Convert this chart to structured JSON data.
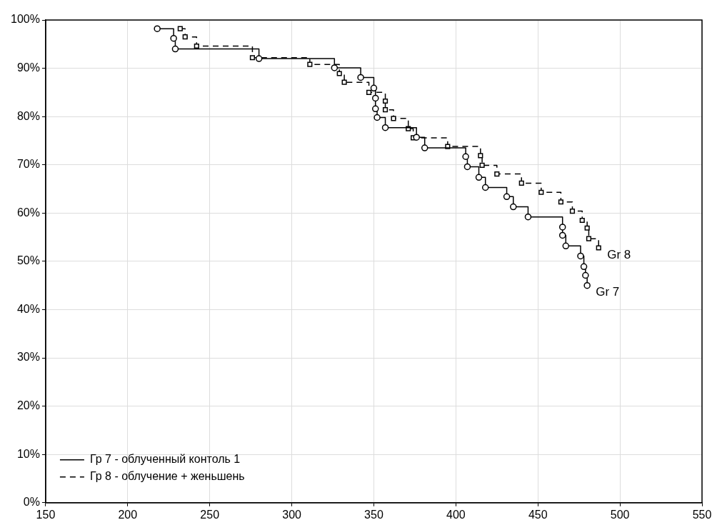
{
  "chart_data": {
    "type": "step",
    "xlim": [
      150,
      550
    ],
    "xticks": [
      150,
      200,
      250,
      300,
      350,
      400,
      450,
      500,
      550
    ],
    "ylim": [
      0,
      100
    ],
    "yticks": [
      {
        "value": 0,
        "label": "0%"
      },
      {
        "value": 10,
        "label": "10%"
      },
      {
        "value": 20,
        "label": "20%"
      },
      {
        "value": 30,
        "label": "30%"
      },
      {
        "value": 40,
        "label": "40%"
      },
      {
        "value": 50,
        "label": "50%"
      },
      {
        "value": 60,
        "label": "60%"
      },
      {
        "value": 70,
        "label": "70%"
      },
      {
        "value": 80,
        "label": "80%"
      },
      {
        "value": 90,
        "label": "90%"
      },
      {
        "value": 100,
        "label": "100%"
      }
    ],
    "grid": true,
    "legend": "bottom left",
    "series": [
      {
        "name": "Гр 7 - облученный контоль 1",
        "color": "#000000",
        "marker": "circle",
        "line_style": "solid",
        "x": [
          218,
          228,
          229,
          280,
          326,
          342,
          350,
          351,
          351,
          352,
          357,
          376,
          381,
          406,
          407,
          414,
          418,
          431,
          435,
          444,
          465,
          465,
          467,
          476,
          478,
          479,
          480
        ],
        "values": [
          98.2,
          96.2,
          94.0,
          92.0,
          90.1,
          88.1,
          85.9,
          83.8,
          81.6,
          79.8,
          77.7,
          75.7,
          73.5,
          71.7,
          69.6,
          67.4,
          65.3,
          63.4,
          61.3,
          59.2,
          57.1,
          55.4,
          53.2,
          51.1,
          48.9,
          47.1,
          45.0
        ]
      },
      {
        "name": "Гр 8 - облучение + женьшень",
        "color": "#000000",
        "marker": "square",
        "line_style": "dashed",
        "x": [
          232,
          235,
          242,
          276,
          311,
          329,
          332,
          347,
          357,
          357,
          362,
          371,
          374,
          395,
          415,
          416,
          425,
          440,
          452,
          464,
          471,
          477,
          480,
          481,
          487
        ],
        "values": [
          98.2,
          96.5,
          94.6,
          92.2,
          90.8,
          88.9,
          87.1,
          85.0,
          83.2,
          81.4,
          79.6,
          77.5,
          75.6,
          73.8,
          71.9,
          69.9,
          68.1,
          66.2,
          64.3,
          62.3,
          60.4,
          58.5,
          56.9,
          54.7,
          52.8
        ]
      }
    ],
    "annotations": [
      "Gr 8",
      "Gr 7"
    ]
  }
}
